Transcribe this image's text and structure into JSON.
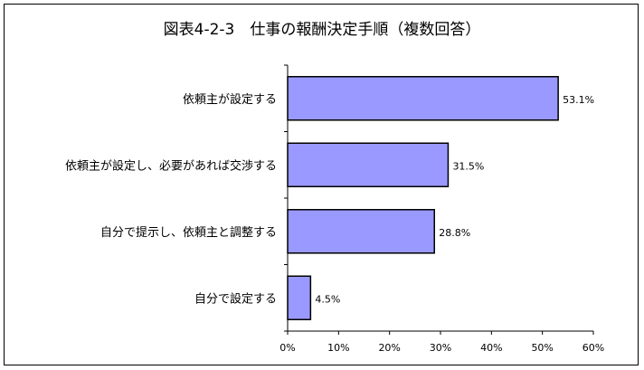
{
  "chart_data": {
    "type": "bar",
    "orientation": "horizontal",
    "title": "図表4-2-3　仕事の報酬決定手順（複数回答）",
    "categories": [
      "依頼主が設定する",
      "依頼主が設定し、必要があれば交渉する",
      "自分で提示し、依頼主と調整する",
      "自分で設定する"
    ],
    "values": [
      53.1,
      31.5,
      28.8,
      4.5
    ],
    "value_labels": [
      "53.1%",
      "31.5%",
      "28.8%",
      "4.5%"
    ],
    "xlim": [
      0,
      60
    ],
    "xticks": [
      0,
      10,
      20,
      30,
      40,
      50,
      60
    ],
    "xtick_labels": [
      "0%",
      "10%",
      "20%",
      "30%",
      "40%",
      "50%",
      "60%"
    ],
    "grid": false,
    "bar_color": "#9999ff",
    "bar_edge_color": "#000000"
  }
}
